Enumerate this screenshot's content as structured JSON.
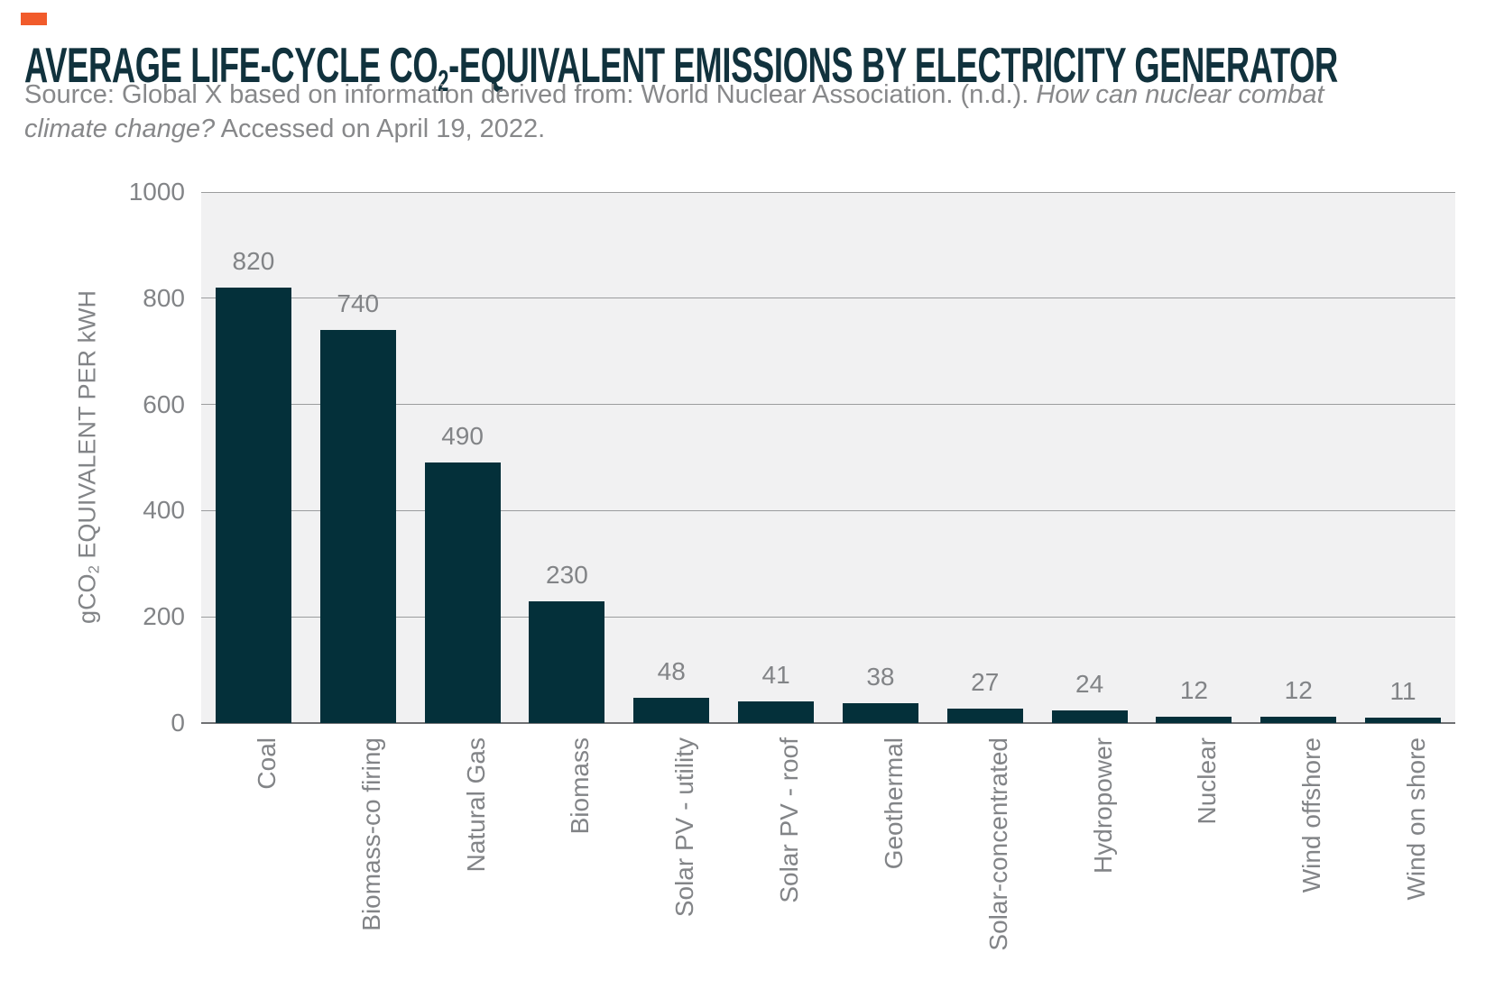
{
  "accent_color": "#f15b2b",
  "header": {
    "title_pre": "AVERAGE LIFE-CYCLE CO",
    "title_sub": "2",
    "title_post": "-EQUIVALENT EMISSIONS BY ELECTRICITY GENERATOR",
    "source_line1_regular": "Source: Global X based on information derived from: World Nuclear Association. (n.d.). ",
    "source_line1_italic": "How can nuclear combat",
    "source_line2_italic": "climate change?",
    "source_line2_regular": " Accessed on April 19, 2022."
  },
  "chart_data": {
    "type": "bar",
    "title": "AVERAGE LIFE-CYCLE CO2-EQUIVALENT EMISSIONS BY ELECTRICITY GENERATOR",
    "categories": [
      "Coal",
      "Biomass-co firing",
      "Natural Gas",
      "Biomass",
      "Solar PV - utility",
      "Solar PV - roof",
      "Geothermal",
      "Solar-concentrated",
      "Hydropower",
      "Nuclear",
      "Wind offshore",
      "Wind on shore"
    ],
    "values": [
      820,
      740,
      490,
      230,
      48,
      41,
      38,
      27,
      24,
      12,
      12,
      11
    ],
    "ylabel_pre": "gCO",
    "ylabel_sub": "2",
    "ylabel_post": " EQUIVALENT PER kWH",
    "xlabel": "",
    "yticks": [
      0,
      200,
      400,
      600,
      800,
      1000
    ],
    "ylim": [
      0,
      1000
    ],
    "grid": true,
    "legend": false,
    "bar_color": "#04303a",
    "plot_bg_color": "#f1f1f2",
    "gridline_color": "#9b9c9e",
    "text_color": "#828487"
  }
}
